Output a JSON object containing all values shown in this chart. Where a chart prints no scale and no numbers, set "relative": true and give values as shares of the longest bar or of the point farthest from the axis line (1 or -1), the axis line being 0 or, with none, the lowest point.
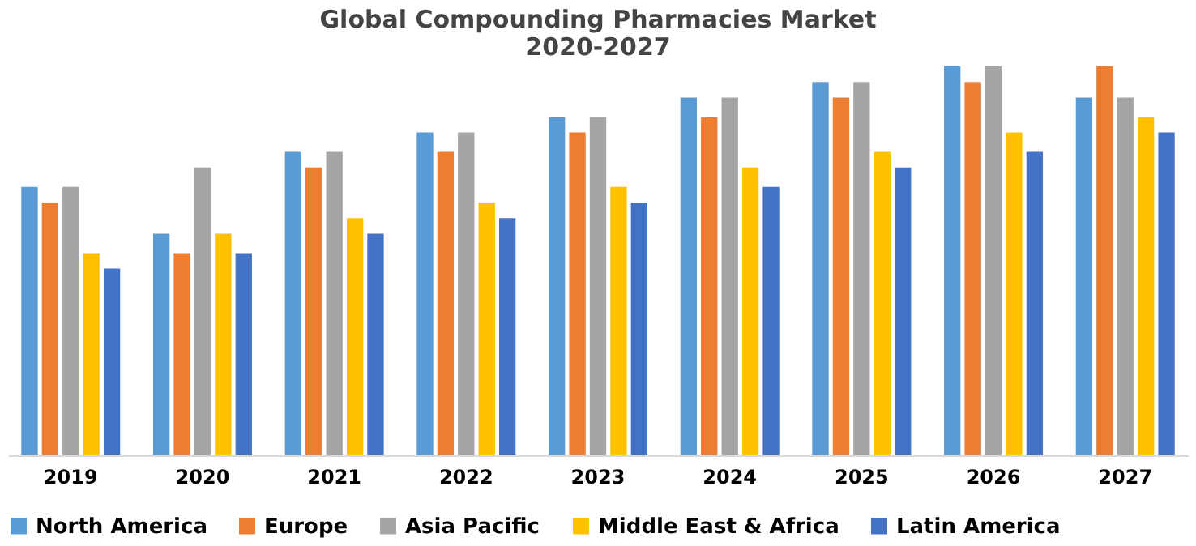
{
  "chart_data": {
    "type": "bar",
    "title": [
      "Global Compounding Pharmacies Market",
      "2020-2027"
    ],
    "relative": true,
    "categories": [
      "2019",
      "2020",
      "2021",
      "2022",
      "2023",
      "2024",
      "2025",
      "2026",
      "2027"
    ],
    "series": [
      {
        "name": "North America",
        "color": "#5b9bd5",
        "values": [
          0.69,
          0.57,
          0.78,
          0.83,
          0.87,
          0.92,
          0.96,
          1,
          0.92
        ]
      },
      {
        "name": "Europe",
        "color": "#ed7d31",
        "values": [
          0.65,
          0.52,
          0.74,
          0.78,
          0.83,
          0.87,
          0.92,
          0.96,
          1
        ]
      },
      {
        "name": "Asia Pacific",
        "color": "#a5a5a5",
        "values": [
          0.69,
          0.74,
          0.78,
          0.83,
          0.87,
          0.92,
          0.96,
          1,
          0.92
        ]
      },
      {
        "name": "Middle East & Africa",
        "color": "#ffc000",
        "values": [
          0.52,
          0.57,
          0.61,
          0.65,
          0.69,
          0.74,
          0.78,
          0.83,
          0.87
        ]
      },
      {
        "name": "Latin America",
        "color": "#4472c4",
        "values": [
          0.48,
          0.52,
          0.57,
          0.61,
          0.65,
          0.69,
          0.74,
          0.78,
          0.83
        ]
      }
    ],
    "legend": "bottom",
    "grid": false
  }
}
